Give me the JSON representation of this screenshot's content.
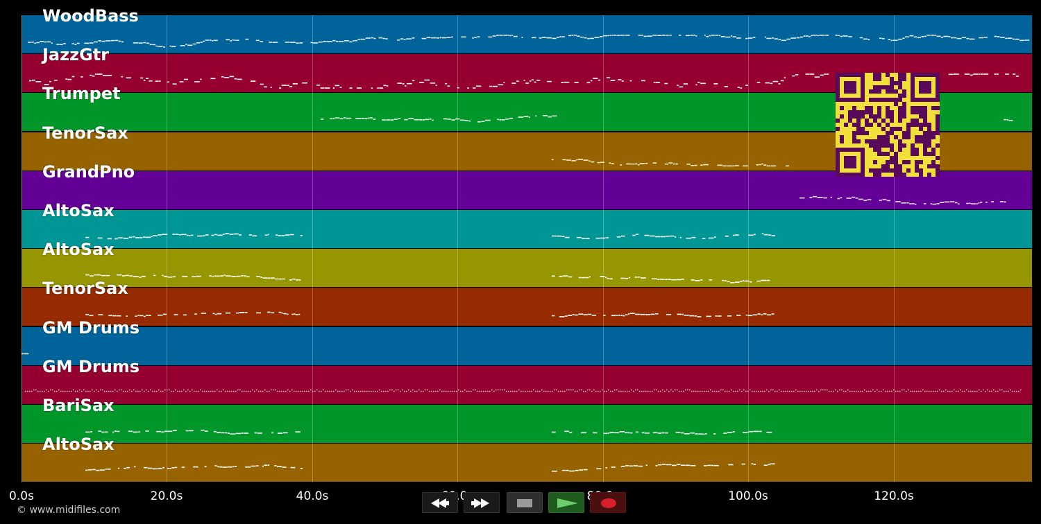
{
  "tracks": [
    {
      "name": "WoodBass",
      "color": "#00639a"
    },
    {
      "name": "JazzGtr",
      "color": "#960030"
    },
    {
      "name": "Trumpet",
      "color": "#00962a"
    },
    {
      "name": "TenorSax",
      "color": "#966300"
    },
    {
      "name": "GrandPno",
      "color": "#630096"
    },
    {
      "name": "AltoSax",
      "color": "#009696"
    },
    {
      "name": "AltoSax",
      "color": "#969600"
    },
    {
      "name": "TenorSax",
      "color": "#962a00"
    },
    {
      "name": "GM Drums",
      "color": "#00639a"
    },
    {
      "name": "GM Drums",
      "color": "#960030"
    },
    {
      "name": "BariSax",
      "color": "#00962a"
    },
    {
      "name": "AltoSax",
      "color": "#966300"
    }
  ],
  "timeline": {
    "ticks": [
      "0.0s",
      "20.0s",
      "40.0s",
      "60.0s",
      "80.0s",
      "100.0s",
      "120.0s"
    ]
  },
  "controls": {
    "rewind": "rewind-icon",
    "fast_forward": "fast-forward-icon",
    "stop": "stop-icon",
    "play": "play-icon",
    "record": "record-icon"
  },
  "footer": {
    "copyright": "© www.midifiles.com"
  },
  "overlay": {
    "qr": "qr-code"
  }
}
